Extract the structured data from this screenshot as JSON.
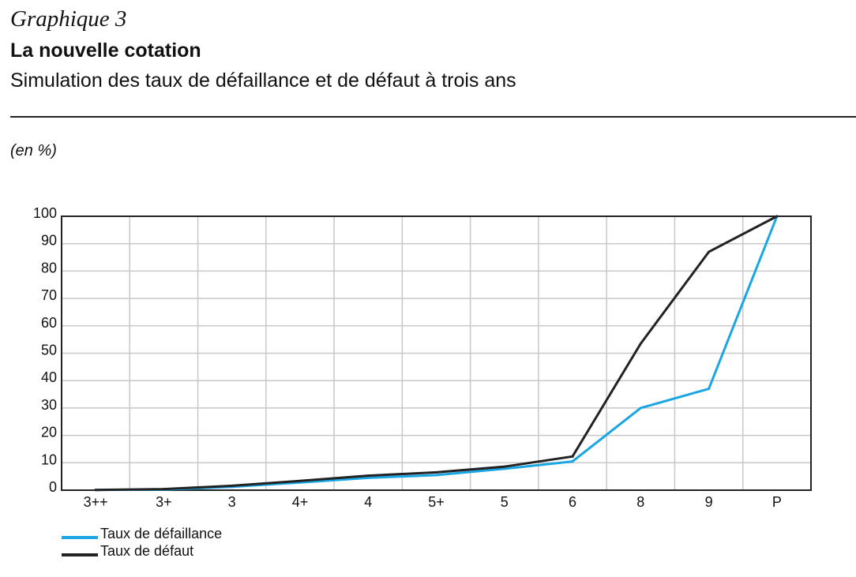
{
  "header": {
    "graph_number": "Graphique 3",
    "title": "La nouvelle cotation",
    "subtitle": "Simulation des taux de défaillance et de défaut à trois ans",
    "unit": "(en %)"
  },
  "colors": {
    "defaillance": "#1aa6e2",
    "defaut": "#222222",
    "grid": "#c8c8c8",
    "frame": "#222222"
  },
  "chart_data": {
    "type": "line",
    "categories": [
      "3++",
      "3+",
      "3",
      "4+",
      "4",
      "5+",
      "5",
      "6",
      "8",
      "9",
      "P"
    ],
    "series": [
      {
        "name": "Taux de défaillance",
        "color": "#1aa6e2",
        "values": [
          0.1,
          0.2,
          1.2,
          2.8,
          4.5,
          5.5,
          7.8,
          10.5,
          30,
          37,
          100
        ]
      },
      {
        "name": "Taux de défaut",
        "color": "#222222",
        "values": [
          0.1,
          0.4,
          1.6,
          3.4,
          5.3,
          6.5,
          8.6,
          12.3,
          53.5,
          87,
          100
        ]
      }
    ],
    "yticks": [
      0,
      10,
      20,
      30,
      40,
      50,
      60,
      70,
      80,
      90,
      100
    ],
    "ylim": [
      0,
      100
    ],
    "grid": true,
    "legend_position": "bottom-left"
  }
}
